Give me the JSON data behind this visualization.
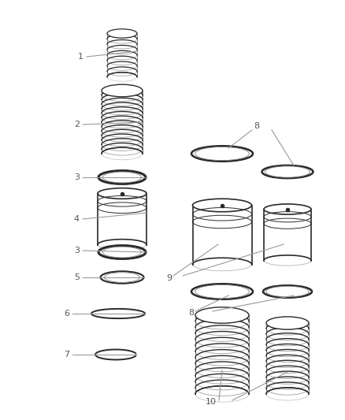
{
  "bg_color": "#ffffff",
  "part_color": "#2a2a2a",
  "label_color": "#555555",
  "line_color": "#999999",
  "fig_w": 4.38,
  "fig_h": 5.33,
  "dpi": 100
}
